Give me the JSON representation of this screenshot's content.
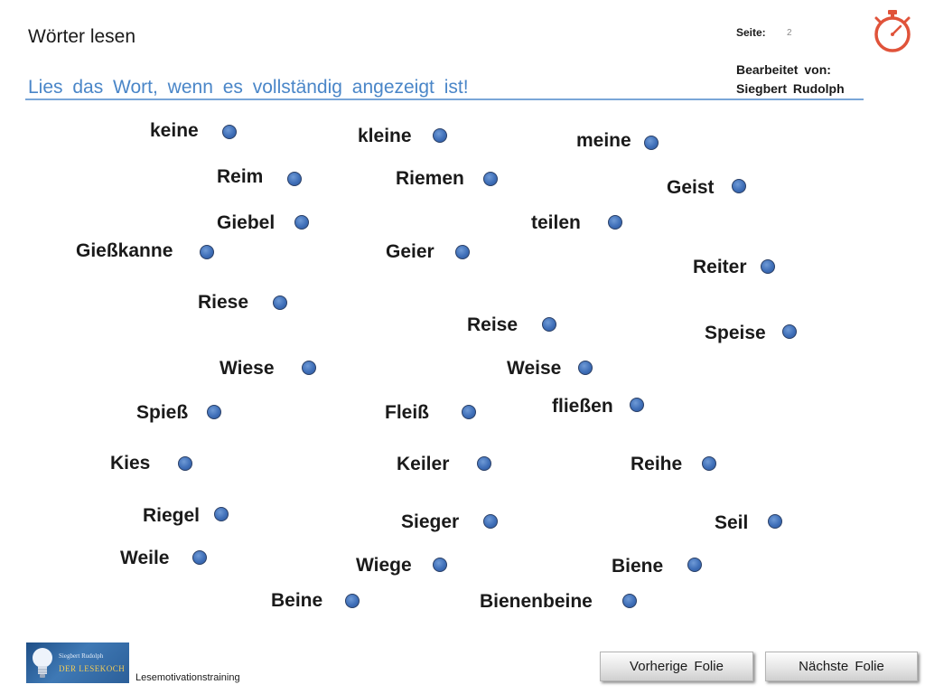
{
  "header": {
    "title": "Wörter lesen",
    "instruction": "Lies das Wort, wenn es vollständig angezeigt ist!",
    "page_label": "Seite:",
    "page_number": "2",
    "editor_label": "Bearbeitet von:",
    "editor_name": "Siegbert Rudolph",
    "timer_icon": "stopwatch-icon",
    "accent_color": "#4a86c8",
    "timer_color": "#e0533a"
  },
  "words": [
    "keine",
    "kleine",
    "meine",
    "Reim",
    "Riemen",
    "Geist",
    "Giebel",
    "teilen",
    "Gießkanne",
    "Geier",
    "Reiter",
    "Riese",
    "Reise",
    "Speise",
    "Wiese",
    "Weise",
    "Spieß",
    "Fleiß",
    "fließen",
    "Kies",
    "Keiler",
    "Reihe",
    "Riegel",
    "Sieger",
    "Seil",
    "Weile",
    "Wiege",
    "Biene",
    "Beine",
    "Bienenbeine"
  ],
  "footer": {
    "logo_author": "Siegbert Rudolph",
    "logo_brand": "DER LESEKOCH",
    "caption": "Lesemotivationstraining",
    "prev_button": "Vorherige Folie",
    "next_button": "Nächste Folie"
  }
}
